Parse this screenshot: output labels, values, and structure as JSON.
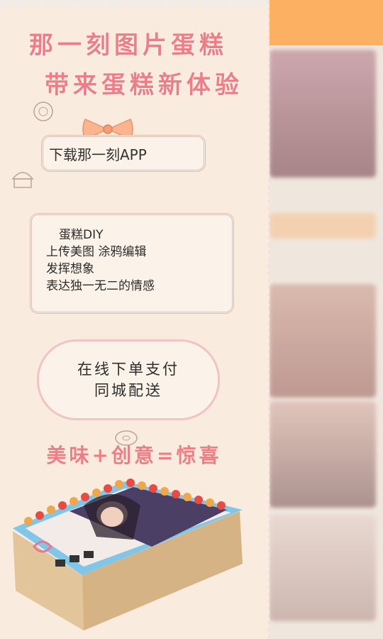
{
  "poster": {
    "headline_1": "那一刻图片蛋糕",
    "headline_2": "带来蛋糕新体验",
    "download": "下载那一刻APP",
    "features": [
      "蛋糕DIY",
      "上传美图 涂鸦编辑",
      "发挥想象",
      "表达独一无二的情感"
    ],
    "order": [
      "在线下单支付",
      "同城配送"
    ],
    "slogan": "美味+创意=惊喜"
  },
  "colors": {
    "accent_pink": "#ee7d86",
    "panel_bg": "#f9ecdf",
    "top_bar_orange": "#fbb062"
  }
}
